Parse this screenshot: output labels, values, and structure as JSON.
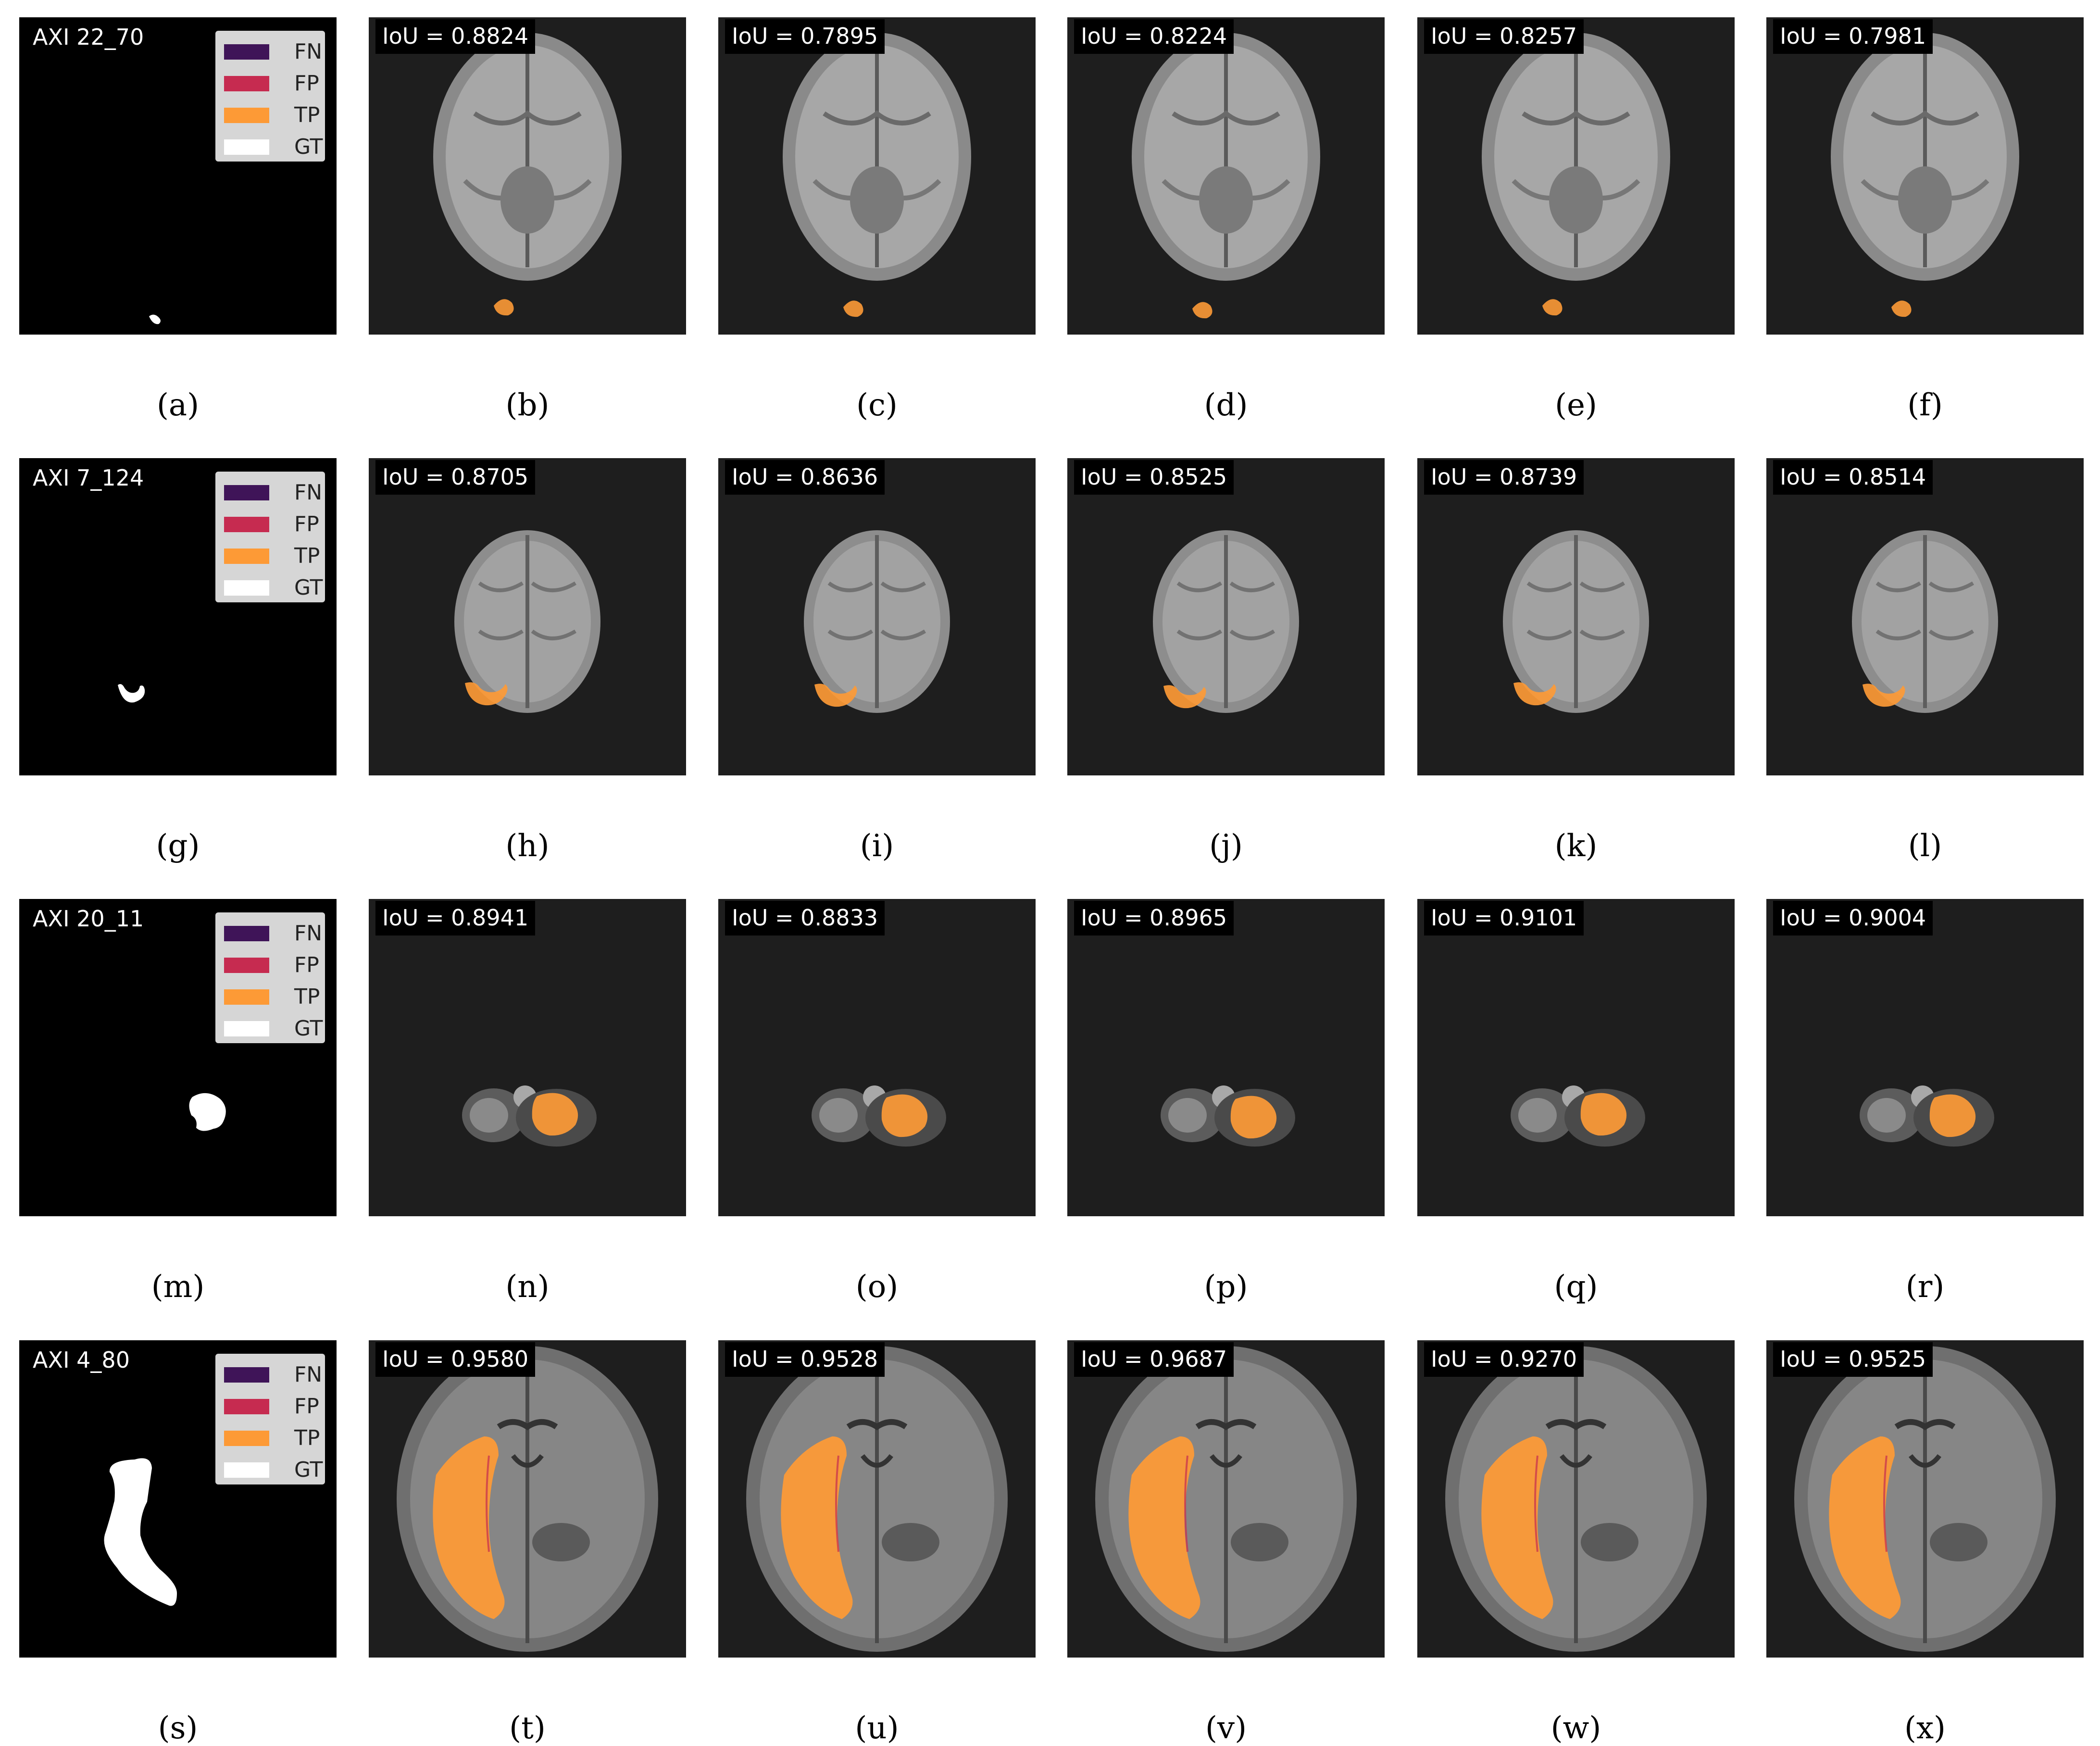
{
  "legend": {
    "items": [
      {
        "label": "FN",
        "color": "#3f1458"
      },
      {
        "label": "FP",
        "color": "#c62b50"
      },
      {
        "label": "TP",
        "color": "#fd9a36"
      },
      {
        "label": "GT",
        "color": "#ffffff"
      }
    ]
  },
  "rows": [
    {
      "slice": "AXI 22_70",
      "gt_caption": "(a)",
      "iou_prefix": "IoU = ",
      "panels": [
        {
          "iou": "0.8824",
          "caption": "(b)"
        },
        {
          "iou": "0.7895",
          "caption": "(c)"
        },
        {
          "iou": "0.8224",
          "caption": "(d)"
        },
        {
          "iou": "0.8257",
          "caption": "(e)"
        },
        {
          "iou": "0.7981",
          "caption": "(f)"
        }
      ]
    },
    {
      "slice": "AXI 7_124",
      "gt_caption": "(g)",
      "iou_prefix": "IoU = ",
      "panels": [
        {
          "iou": "0.8705",
          "caption": "(h)"
        },
        {
          "iou": "0.8636",
          "caption": "(i)"
        },
        {
          "iou": "0.8525",
          "caption": "(j)"
        },
        {
          "iou": "0.8739",
          "caption": "(k)"
        },
        {
          "iou": "0.8514",
          "caption": "(l)"
        }
      ]
    },
    {
      "slice": "AXI 20_11",
      "gt_caption": "(m)",
      "iou_prefix": "IoU = ",
      "panels": [
        {
          "iou": "0.8941",
          "caption": "(n)"
        },
        {
          "iou": "0.8833",
          "caption": "(o)"
        },
        {
          "iou": "0.8965",
          "caption": "(p)"
        },
        {
          "iou": "0.9101",
          "caption": "(q)"
        },
        {
          "iou": "0.9004",
          "caption": "(r)"
        }
      ]
    },
    {
      "slice": "AXI 4_80",
      "gt_caption": "(s)",
      "iou_prefix": "IoU = ",
      "panels": [
        {
          "iou": "0.9580",
          "caption": "(t)"
        },
        {
          "iou": "0.9528",
          "caption": "(u)"
        },
        {
          "iou": "0.9687",
          "caption": "(v)"
        },
        {
          "iou": "0.9270",
          "caption": "(w)"
        },
        {
          "iou": "0.9525",
          "caption": "(x)"
        }
      ]
    }
  ]
}
